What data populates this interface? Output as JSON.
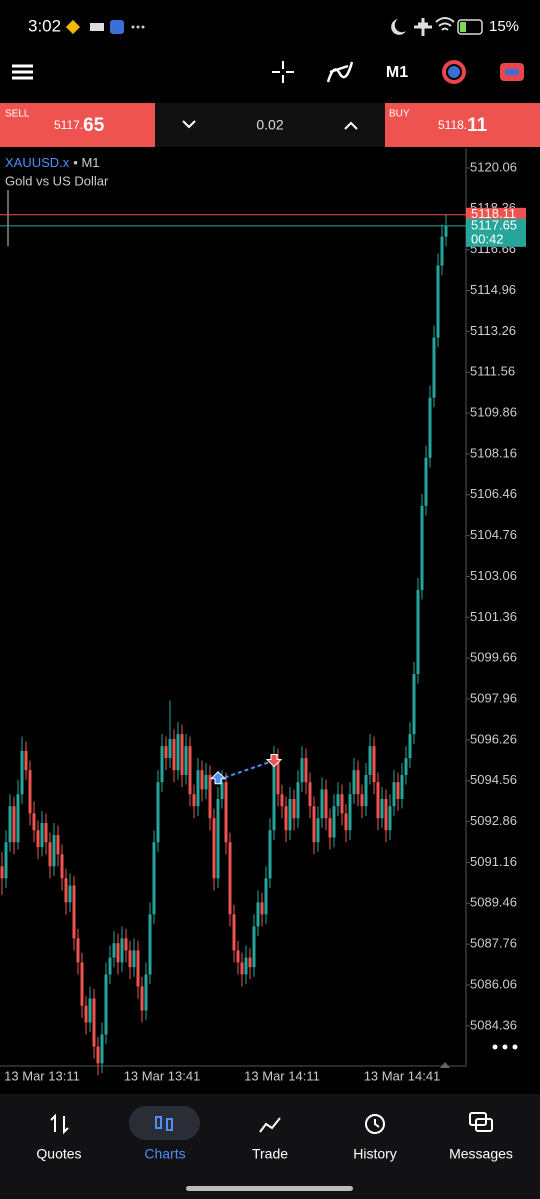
{
  "status_bar": {
    "time": "3:02",
    "battery": "15%"
  },
  "toolbar": {
    "timeframe": "M1"
  },
  "trade_panel": {
    "sell_label": "SELL",
    "sell_price_small": "5117.",
    "sell_price_big": "65",
    "volume": "0.02",
    "buy_label": "BUY",
    "buy_price_small": "5118.",
    "buy_price_big": "11"
  },
  "symbol": {
    "name": "XAUUSD.x",
    "timeframe": "• M1",
    "description": "Gold vs US Dollar"
  },
  "chart_data": {
    "type": "candlestick",
    "up_color": "#26a69a",
    "down_color": "#ef5350",
    "ylim": [
      5082.69,
      5120.89
    ],
    "yticks": [
      5120.06,
      5118.36,
      5116.66,
      5114.96,
      5113.26,
      5111.56,
      5109.86,
      5108.16,
      5106.46,
      5104.76,
      5103.06,
      5101.36,
      5099.66,
      5097.96,
      5096.26,
      5094.56,
      5092.86,
      5091.16,
      5089.46,
      5087.76,
      5086.06,
      5084.36
    ],
    "bid": 5117.65,
    "ask": 5118.11,
    "countdown": "00:42",
    "trade": {
      "entry_index": 54,
      "entry_price": 5094.6,
      "exit_index": 68,
      "exit_price": 5095.4
    },
    "categories": [
      null,
      null,
      null,
      null,
      null,
      null,
      null,
      null,
      null,
      null,
      "13 Mar 13:11",
      null,
      null,
      null,
      null,
      null,
      null,
      null,
      null,
      null,
      null,
      null,
      null,
      null,
      null,
      null,
      null,
      null,
      null,
      null,
      null,
      null,
      null,
      null,
      null,
      null,
      null,
      null,
      null,
      null,
      "13 Mar 13:41",
      null,
      null,
      null,
      null,
      null,
      null,
      null,
      null,
      null,
      null,
      null,
      null,
      null,
      null,
      null,
      null,
      null,
      null,
      null,
      null,
      null,
      null,
      null,
      null,
      null,
      null,
      null,
      null,
      null,
      "13 Mar 14:11",
      null,
      null,
      null,
      null,
      null,
      null,
      null,
      null,
      null,
      null,
      null,
      null,
      null,
      null,
      null,
      null,
      null,
      null,
      null,
      null,
      null,
      null,
      null,
      null,
      null,
      null,
      null,
      null,
      null,
      "13 Mar 14:41",
      null,
      null,
      null,
      null,
      null,
      null,
      null,
      null,
      null,
      null,
      null
    ],
    "candles": [
      [
        5091.0,
        5091.6,
        5089.8,
        5090.5
      ],
      [
        5090.5,
        5092.5,
        5090.1,
        5092.0
      ],
      [
        5092.0,
        5094.0,
        5091.6,
        5093.5
      ],
      [
        5093.5,
        5093.9,
        5091.5,
        5092.0
      ],
      [
        5092.0,
        5094.6,
        5091.7,
        5094.0
      ],
      [
        5094.0,
        5096.4,
        5093.6,
        5095.8
      ],
      [
        5095.8,
        5096.2,
        5094.6,
        5095.0
      ],
      [
        5095.0,
        5095.4,
        5092.7,
        5093.2
      ],
      [
        5093.2,
        5093.7,
        5092.0,
        5092.5
      ],
      [
        5092.5,
        5092.9,
        5091.3,
        5091.8
      ],
      [
        5091.8,
        5093.3,
        5091.4,
        5092.8
      ],
      [
        5092.8,
        5093.2,
        5091.5,
        5092.0
      ],
      [
        5092.0,
        5092.4,
        5090.5,
        5091.0
      ],
      [
        5091.0,
        5092.8,
        5090.6,
        5092.3
      ],
      [
        5092.3,
        5092.7,
        5091.0,
        5091.5
      ],
      [
        5091.5,
        5091.9,
        5090.0,
        5090.5
      ],
      [
        5090.5,
        5090.9,
        5089.0,
        5089.5
      ],
      [
        5089.5,
        5090.7,
        5089.1,
        5090.2
      ],
      [
        5090.2,
        5090.6,
        5087.5,
        5088.0
      ],
      [
        5088.0,
        5088.4,
        5086.5,
        5087.0
      ],
      [
        5087.0,
        5087.4,
        5084.7,
        5085.2
      ],
      [
        5085.2,
        5085.6,
        5084.0,
        5084.5
      ],
      [
        5084.5,
        5086.0,
        5084.1,
        5085.5
      ],
      [
        5085.5,
        5085.9,
        5083.0,
        5083.5
      ],
      [
        5083.5,
        5083.9,
        5082.3,
        5082.8
      ],
      [
        5082.8,
        5084.5,
        5082.4,
        5084.0
      ],
      [
        5084.0,
        5087.0,
        5083.6,
        5086.5
      ],
      [
        5086.5,
        5087.7,
        5086.1,
        5087.2
      ],
      [
        5087.2,
        5088.3,
        5086.8,
        5087.8
      ],
      [
        5087.8,
        5088.2,
        5086.5,
        5087.0
      ],
      [
        5087.0,
        5088.5,
        5086.6,
        5088.0
      ],
      [
        5088.0,
        5088.4,
        5087.0,
        5087.5
      ],
      [
        5087.5,
        5087.9,
        5086.3,
        5086.8
      ],
      [
        5086.8,
        5088.0,
        5086.4,
        5087.5
      ],
      [
        5087.5,
        5087.9,
        5085.5,
        5086.0
      ],
      [
        5086.0,
        5086.4,
        5084.5,
        5085.0
      ],
      [
        5085.0,
        5087.0,
        5084.6,
        5086.5
      ],
      [
        5086.5,
        5089.5,
        5086.1,
        5089.0
      ],
      [
        5089.0,
        5092.5,
        5088.6,
        5092.0
      ],
      [
        5092.0,
        5095.0,
        5091.6,
        5094.5
      ],
      [
        5094.5,
        5096.5,
        5094.1,
        5096.0
      ],
      [
        5096.0,
        5096.4,
        5095.0,
        5095.5
      ],
      [
        5095.5,
        5097.9,
        5095.1,
        5096.3
      ],
      [
        5096.3,
        5096.7,
        5094.5,
        5095.0
      ],
      [
        5095.0,
        5097.0,
        5094.6,
        5096.5
      ],
      [
        5096.5,
        5096.9,
        5094.3,
        5094.8
      ],
      [
        5094.8,
        5096.5,
        5094.4,
        5096.0
      ],
      [
        5096.0,
        5096.4,
        5093.5,
        5094.0
      ],
      [
        5094.0,
        5094.4,
        5093.0,
        5093.5
      ],
      [
        5093.5,
        5095.5,
        5093.1,
        5095.0
      ],
      [
        5095.0,
        5095.4,
        5093.7,
        5094.2
      ],
      [
        5094.2,
        5095.3,
        5093.8,
        5094.8
      ],
      [
        5094.8,
        5095.2,
        5092.5,
        5093.0
      ],
      [
        5093.0,
        5093.4,
        5090.0,
        5090.5
      ],
      [
        5090.5,
        5094.3,
        5090.1,
        5093.8
      ],
      [
        5093.8,
        5095.0,
        5093.4,
        5094.5
      ],
      [
        5094.5,
        5094.9,
        5091.5,
        5092.0
      ],
      [
        5092.0,
        5092.4,
        5088.5,
        5089.0
      ],
      [
        5089.0,
        5089.4,
        5087.0,
        5087.5
      ],
      [
        5087.5,
        5087.9,
        5086.5,
        5087.0
      ],
      [
        5087.0,
        5087.4,
        5086.0,
        5086.5
      ],
      [
        5086.5,
        5087.7,
        5086.1,
        5087.2
      ],
      [
        5087.2,
        5087.6,
        5086.3,
        5086.8
      ],
      [
        5086.8,
        5089.0,
        5086.4,
        5088.5
      ],
      [
        5088.5,
        5090.0,
        5088.1,
        5089.5
      ],
      [
        5089.5,
        5089.9,
        5088.5,
        5089.0
      ],
      [
        5089.0,
        5091.0,
        5088.6,
        5090.5
      ],
      [
        5090.5,
        5093.0,
        5090.1,
        5092.5
      ],
      [
        5092.5,
        5096.0,
        5092.1,
        5095.5
      ],
      [
        5095.5,
        5095.9,
        5093.5,
        5094.0
      ],
      [
        5094.0,
        5094.4,
        5093.0,
        5093.5
      ],
      [
        5093.5,
        5093.9,
        5092.0,
        5092.5
      ],
      [
        5092.5,
        5094.3,
        5092.1,
        5093.8
      ],
      [
        5093.8,
        5094.2,
        5092.5,
        5093.0
      ],
      [
        5093.0,
        5095.0,
        5092.6,
        5094.5
      ],
      [
        5094.5,
        5096.0,
        5094.1,
        5095.5
      ],
      [
        5095.5,
        5095.9,
        5094.0,
        5094.5
      ],
      [
        5094.5,
        5094.9,
        5093.0,
        5093.5
      ],
      [
        5093.5,
        5093.9,
        5091.5,
        5092.0
      ],
      [
        5092.0,
        5093.5,
        5091.6,
        5093.0
      ],
      [
        5093.0,
        5094.7,
        5092.6,
        5094.2
      ],
      [
        5094.2,
        5094.6,
        5092.5,
        5093.0
      ],
      [
        5093.0,
        5093.4,
        5091.7,
        5092.2
      ],
      [
        5092.2,
        5094.0,
        5091.8,
        5093.5
      ],
      [
        5093.5,
        5094.5,
        5093.1,
        5094.0
      ],
      [
        5094.0,
        5094.4,
        5092.7,
        5093.2
      ],
      [
        5093.2,
        5093.6,
        5092.0,
        5092.5
      ],
      [
        5092.5,
        5094.5,
        5092.1,
        5094.0
      ],
      [
        5094.0,
        5095.5,
        5093.6,
        5095.0
      ],
      [
        5095.0,
        5095.4,
        5093.5,
        5094.0
      ],
      [
        5094.0,
        5094.4,
        5093.0,
        5093.5
      ],
      [
        5093.5,
        5095.3,
        5093.1,
        5094.8
      ],
      [
        5094.8,
        5096.5,
        5094.4,
        5096.0
      ],
      [
        5096.0,
        5096.4,
        5094.0,
        5094.5
      ],
      [
        5094.5,
        5094.9,
        5092.5,
        5093.0
      ],
      [
        5093.0,
        5094.3,
        5092.6,
        5093.8
      ],
      [
        5093.8,
        5094.2,
        5092.0,
        5092.5
      ],
      [
        5092.5,
        5094.0,
        5092.1,
        5093.5
      ],
      [
        5093.5,
        5095.0,
        5093.1,
        5094.5
      ],
      [
        5094.5,
        5094.9,
        5093.3,
        5093.8
      ],
      [
        5093.8,
        5095.3,
        5093.4,
        5094.8
      ],
      [
        5094.8,
        5096.0,
        5094.4,
        5095.5
      ],
      [
        5095.5,
        5097.0,
        5095.1,
        5096.5
      ],
      [
        5096.5,
        5099.5,
        5096.1,
        5099.0
      ],
      [
        5099.0,
        5103.0,
        5098.6,
        5102.5
      ],
      [
        5102.5,
        5106.5,
        5102.1,
        5106.0
      ],
      [
        5106.0,
        5108.5,
        5105.6,
        5108.0
      ],
      [
        5108.0,
        5111.0,
        5107.6,
        5110.5
      ],
      [
        5110.5,
        5113.5,
        5110.1,
        5113.0
      ],
      [
        5113.0,
        5116.5,
        5112.6,
        5116.0
      ],
      [
        5116.0,
        5117.7,
        5115.6,
        5117.2
      ],
      [
        5117.2,
        5118.1,
        5116.8,
        5117.65
      ]
    ]
  },
  "nav": [
    "Quotes",
    "Charts",
    "Trade",
    "History",
    "Messages"
  ]
}
